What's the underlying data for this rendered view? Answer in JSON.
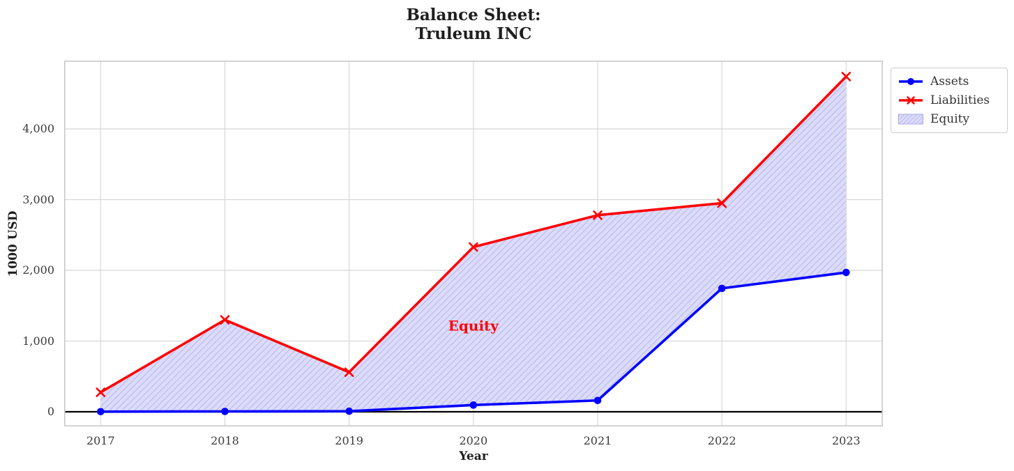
{
  "title_line1": "Balance Sheet:",
  "title_line2": "Truleum INC",
  "chart_data": {
    "type": "line",
    "title": "Balance Sheet:\nTruleum INC",
    "xlabel": "Year",
    "ylabel": "1000 USD",
    "x": [
      2017,
      2018,
      2019,
      2020,
      2021,
      2022,
      2023
    ],
    "series": [
      {
        "name": "Assets",
        "color": "#0000ff",
        "marker": "circle",
        "values": [
          2,
          5,
          8,
          95,
          160,
          1745,
          1970
        ]
      },
      {
        "name": "Liabilities",
        "color": "#ff0000",
        "marker": "x",
        "values": [
          275,
          1300,
          560,
          2330,
          2780,
          2950,
          4740
        ]
      }
    ],
    "fill_between": {
      "name": "Equity",
      "between": [
        "Assets",
        "Liabilities"
      ],
      "facecolor": "#dcdcfa",
      "hatch": "//",
      "hatch_color": "#bfbff1",
      "edgecolor": "#a8a8e8"
    },
    "annotation": {
      "text": "Equity",
      "x": 2020,
      "y": 1200,
      "color": "#ff0000",
      "bold": true
    },
    "xticks": [
      "2017",
      "2018",
      "2019",
      "2020",
      "2021",
      "2022",
      "2023"
    ],
    "yticks": {
      "values": [
        0,
        1000,
        2000,
        3000,
        4000
      ],
      "labels": [
        "0",
        "1,000",
        "2,000",
        "3,000",
        "4,000"
      ]
    },
    "xlim": [
      2016.7,
      2023.3
    ],
    "ylim": [
      -210,
      4970
    ],
    "grid": true,
    "zero_line": true,
    "grid_color": "#d8d8d8",
    "border_color": "#c9c9c9",
    "legend": {
      "position": "outside-upper-right",
      "entries": [
        "Assets",
        "Liabilities",
        "Equity"
      ]
    }
  }
}
